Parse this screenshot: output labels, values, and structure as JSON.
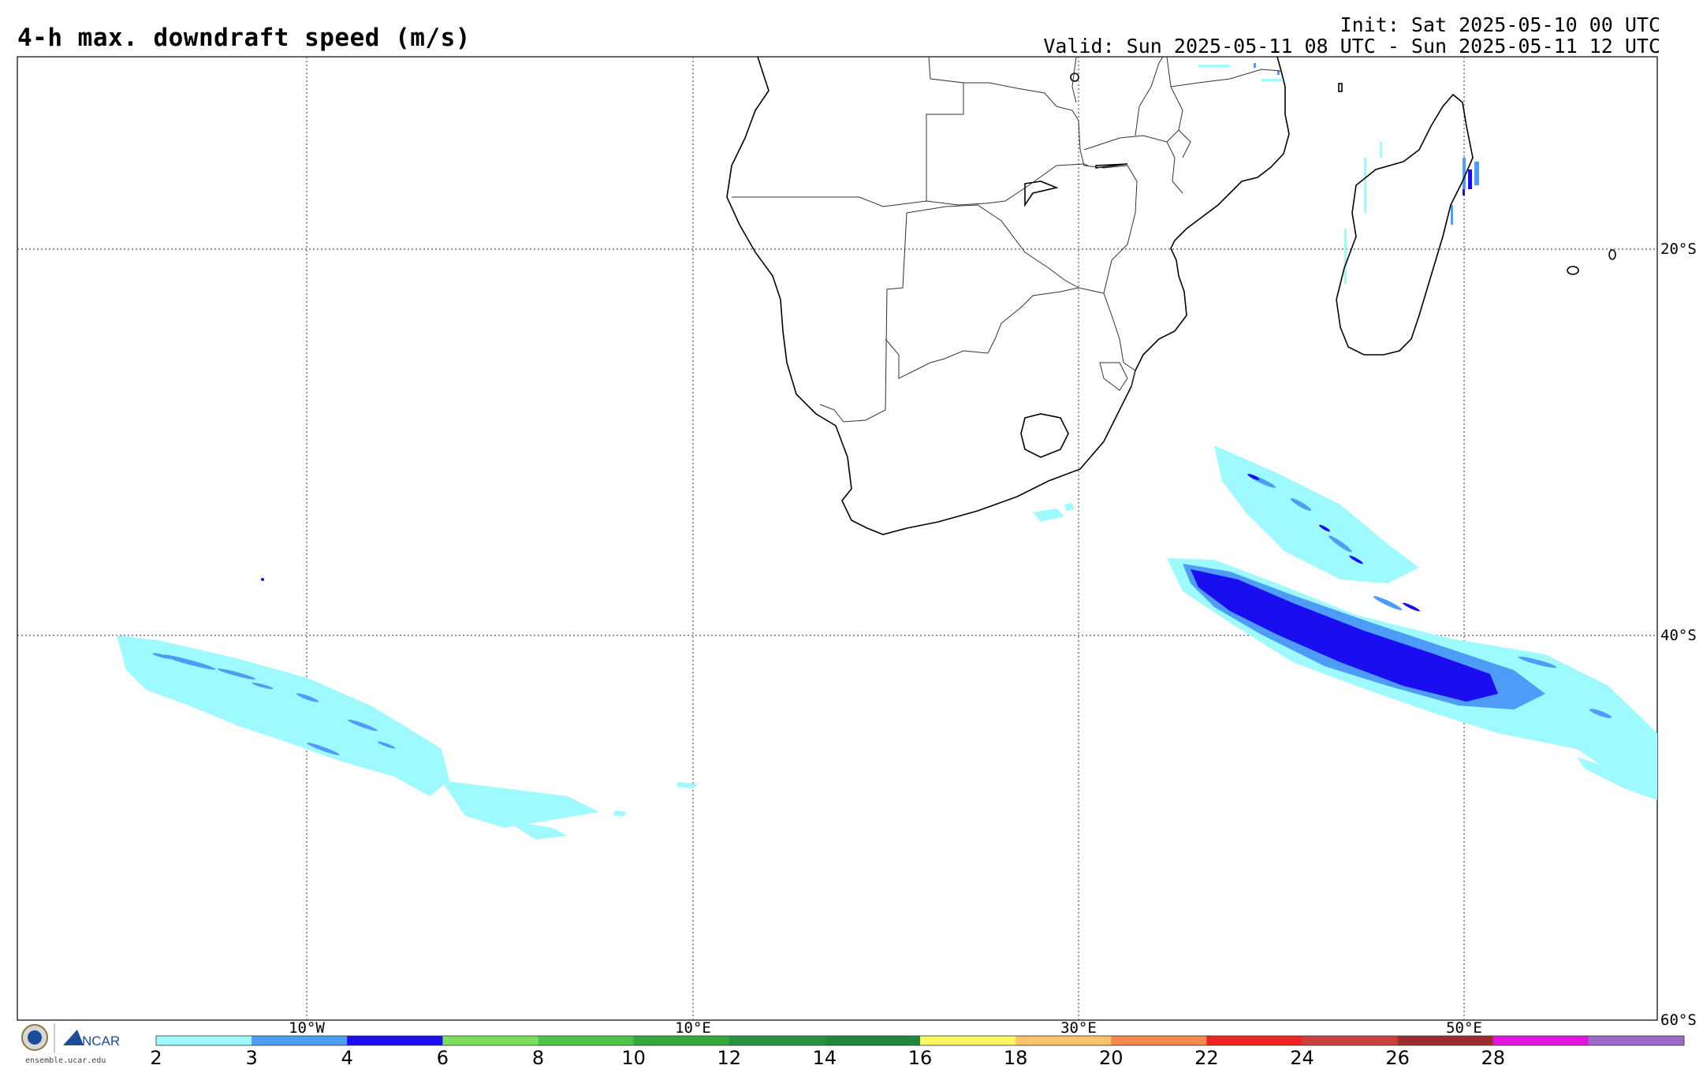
{
  "header": {
    "title": "4-h max. downdraft speed (m/s)",
    "init": "Init: Sat 2025-05-10 00 UTC",
    "valid": "Valid: Sun 2025-05-11 08 UTC - Sun 2025-05-11 12 UTC"
  },
  "map": {
    "lat_labels": [
      "20°S",
      "40°S",
      "60°S"
    ],
    "lon_labels": [
      "10°W",
      "10°E",
      "30°E",
      "50°E"
    ]
  },
  "colorbar": {
    "ticks": [
      "2",
      "3",
      "4",
      "6",
      "8",
      "10",
      "12",
      "14",
      "16",
      "18",
      "20",
      "22",
      "24",
      "26",
      "28"
    ],
    "colors": [
      "#9ffaff",
      "#4d9cf7",
      "#1a0ef0",
      "#7ce05e",
      "#4dc44a",
      "#35aa3c",
      "#2a9140",
      "#21873c",
      "#fbf861",
      "#fbc46b",
      "#f98a4c",
      "#f2231f",
      "#cb3f3f",
      "#9e2e2e",
      "#e415e1",
      "#9d6ccb"
    ]
  },
  "footer": {
    "logo_text": "NCAR",
    "url": "ensemble.ucar.edu"
  }
}
